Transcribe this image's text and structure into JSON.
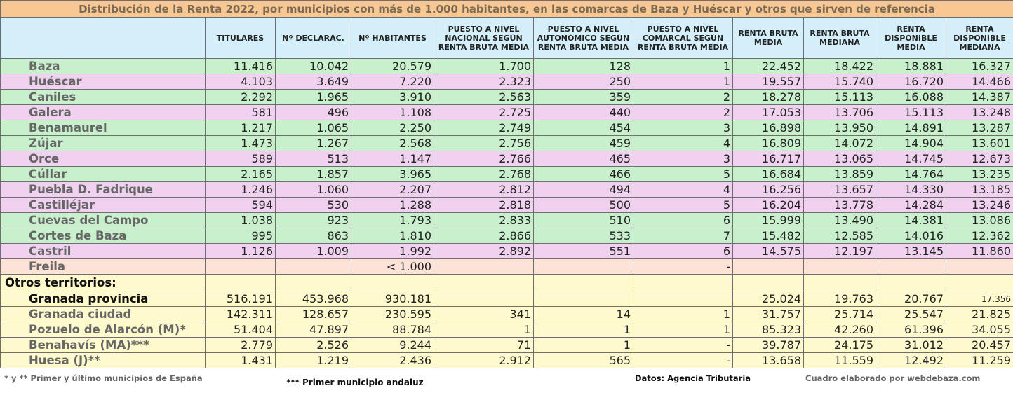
{
  "title": "Distribución de la Renta 2022, por municipios con más de 1.000 habitantes, en las comarcas de Baza y Huéscar y otros que sirven de referencia",
  "columns": [
    "",
    "TITULARES",
    "Nº DECLARAC.",
    "Nº HABITANTES",
    "PUESTO A NIVEL NACIONAL SEGÚN RENTA BRUTA MEDIA",
    "PUESTO A NIVEL AUTONÓMICO SEGÚN RENTA BRUTA MEDIA",
    "PUESTO A NIVEL COMARCAL SEGÚN RENTA BRUTA MEDIA",
    "RENTA BRUTA MEDIA",
    "RENTA BRUTA MEDIANA",
    "RENTA DISPONIBLE MEDIA",
    "RENTA DISPONIBLE MEDIANA"
  ],
  "rows": [
    {
      "c": "g",
      "cells": [
        "Baza",
        "11.416",
        "10.042",
        "20.579",
        "1.700",
        "128",
        "1",
        "22.452",
        "18.422",
        "18.881",
        "16.327"
      ]
    },
    {
      "c": "p",
      "cells": [
        "Huéscar",
        "4.103",
        "3.649",
        "7.220",
        "2.323",
        "250",
        "1",
        "19.557",
        "15.740",
        "16.720",
        "14.466"
      ]
    },
    {
      "c": "g",
      "cells": [
        "Caniles",
        "2.292",
        "1.965",
        "3.910",
        "2.563",
        "359",
        "2",
        "18.278",
        "15.113",
        "16.088",
        "14.387"
      ]
    },
    {
      "c": "p",
      "cells": [
        "Galera",
        "581",
        "496",
        "1.108",
        "2.725",
        "440",
        "2",
        "17.053",
        "13.706",
        "15.113",
        "13.248"
      ]
    },
    {
      "c": "g",
      "cells": [
        "Benamaurel",
        "1.217",
        "1.065",
        "2.250",
        "2.749",
        "454",
        "3",
        "16.898",
        "13.950",
        "14.891",
        "13.287"
      ]
    },
    {
      "c": "g",
      "cells": [
        "Zújar",
        "1.473",
        "1.267",
        "2.568",
        "2.756",
        "459",
        "4",
        "16.809",
        "14.072",
        "14.904",
        "13.601"
      ]
    },
    {
      "c": "p",
      "cells": [
        "Orce",
        "589",
        "513",
        "1.147",
        "2.766",
        "465",
        "3",
        "16.717",
        "13.065",
        "14.745",
        "12.673"
      ]
    },
    {
      "c": "g",
      "cells": [
        "Cúllar",
        "2.165",
        "1.857",
        "3.965",
        "2.768",
        "466",
        "5",
        "16.684",
        "13.859",
        "14.764",
        "13.235"
      ]
    },
    {
      "c": "p",
      "cells": [
        "Puebla D. Fadrique",
        "1.246",
        "1.060",
        "2.207",
        "2.812",
        "494",
        "4",
        "16.256",
        "13.657",
        "14.330",
        "13.185"
      ]
    },
    {
      "c": "p",
      "cells": [
        "Castilléjar",
        "594",
        "530",
        "1.288",
        "2.818",
        "500",
        "5",
        "16.204",
        "13.778",
        "14.284",
        "13.246"
      ]
    },
    {
      "c": "g",
      "cells": [
        "Cuevas del Campo",
        "1.038",
        "923",
        "1.793",
        "2.833",
        "510",
        "6",
        "15.999",
        "13.490",
        "14.381",
        "13.086"
      ]
    },
    {
      "c": "g",
      "cells": [
        "Cortes de Baza",
        "995",
        "863",
        "1.810",
        "2.866",
        "533",
        "7",
        "15.482",
        "12.585",
        "14.016",
        "12.362"
      ]
    },
    {
      "c": "p",
      "cells": [
        "Castril",
        "1.126",
        "1.009",
        "1.992",
        "2.892",
        "551",
        "6",
        "14.575",
        "12.197",
        "13.145",
        "11.860"
      ]
    },
    {
      "c": "s",
      "cells": [
        "Freila",
        "",
        "",
        "< 1.000",
        "",
        "",
        "-",
        "",
        "",
        "",
        ""
      ]
    },
    {
      "c": "y",
      "section": true,
      "cells": [
        "Otros territorios:",
        "",
        "",
        "",
        "",
        "",
        "",
        "",
        "",
        "",
        ""
      ]
    },
    {
      "c": "y",
      "black": true,
      "cells": [
        "Granada provincia",
        "516.191",
        "453.968",
        "930.181",
        "",
        "",
        "",
        "25.024",
        "19.763",
        "20.767",
        "17.356"
      ]
    },
    {
      "c": "y",
      "cells": [
        "Granada ciudad",
        "142.311",
        "128.657",
        "230.595",
        "341",
        "14",
        "1",
        "31.757",
        "25.714",
        "25.547",
        "21.825"
      ]
    },
    {
      "c": "y",
      "cells": [
        "Pozuelo de Alarcón (M)*",
        "51.404",
        "47.897",
        "88.784",
        "1",
        "1",
        "1",
        "85.323",
        "42.260",
        "61.396",
        "34.055"
      ]
    },
    {
      "c": "y",
      "cells": [
        "Benahavís (MA)***",
        "2.779",
        "2.526",
        "9.244",
        "71",
        "1",
        "-",
        "39.787",
        "24.175",
        "31.012",
        "20.457"
      ]
    },
    {
      "c": "y",
      "cells": [
        "Huesa (J)**",
        "1.431",
        "1.219",
        "2.436",
        "2.912",
        "565",
        "-",
        "13.658",
        "11.559",
        "12.492",
        "11.259"
      ]
    }
  ],
  "footer": {
    "note1": "* y ** Primer y último municipios de España",
    "note2": "*** Primer municipio andaluz",
    "source": "Datos: Agencia Tributaria",
    "credit": "Cuadro elaborado por webdebaza.com"
  }
}
